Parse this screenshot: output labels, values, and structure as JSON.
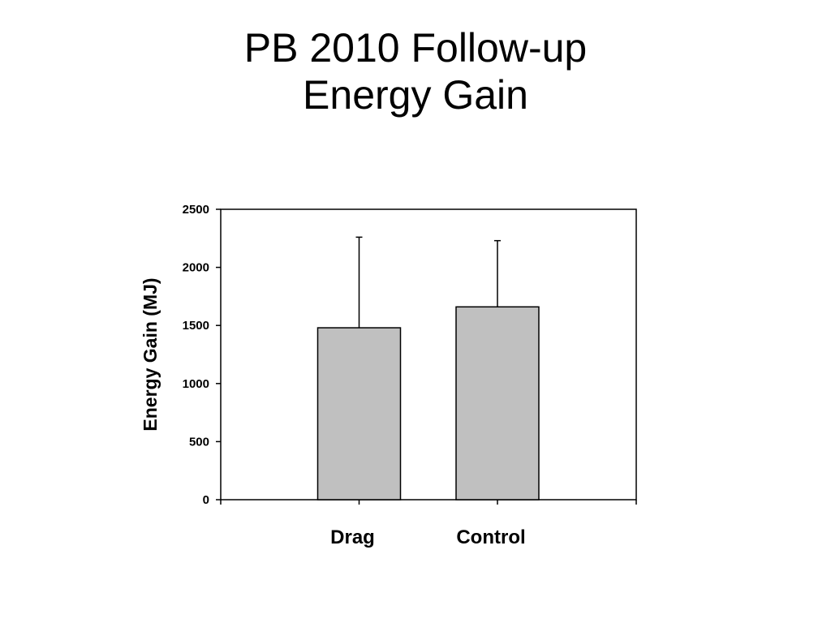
{
  "chart_data": {
    "type": "bar",
    "title_lines": [
      "PB 2010 Follow-up",
      "Energy Gain"
    ],
    "categories": [
      "Drag",
      "Control"
    ],
    "values": [
      1480,
      1660
    ],
    "error_upper": [
      2260,
      2230
    ],
    "xlabel": "",
    "ylabel": "Energy Gain (MJ)",
    "ylim": [
      0,
      2500
    ],
    "yticks": [
      0,
      500,
      1000,
      1500,
      2000,
      2500
    ],
    "grid": false,
    "legend": "none",
    "bar_color": "#c0c0c0",
    "bar_edge_color": "#000000"
  }
}
